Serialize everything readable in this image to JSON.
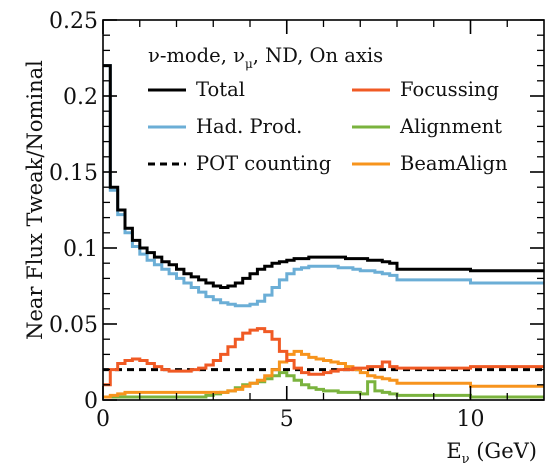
{
  "chart_data": {
    "type": "line",
    "title": "",
    "xlabel_parts": {
      "base": "E",
      "sub": "ν",
      "rest": " (GeV)"
    },
    "ylabel": "Near Flux Tweak/Nominal",
    "xlim": [
      0,
      12
    ],
    "ylim": [
      0,
      0.25
    ],
    "xticks": [
      0,
      5,
      10
    ],
    "yticks": [
      0,
      0.05,
      0.1,
      0.15,
      0.2,
      0.25
    ],
    "ytick_labels": [
      "0",
      "0.05",
      "0.1",
      "0.15",
      "0.2",
      "0.25"
    ],
    "grid": false,
    "legend_header": {
      "t1": "ν-mode, ν",
      "sub": "μ",
      "t2": ", ND, On axis"
    },
    "legend_position": "top-right",
    "bin_edges": [
      0,
      0.2,
      0.4,
      0.6,
      0.8,
      1.0,
      1.2,
      1.4,
      1.6,
      1.8,
      2.0,
      2.2,
      2.4,
      2.6,
      2.8,
      3.0,
      3.2,
      3.4,
      3.6,
      3.8,
      4.0,
      4.2,
      4.4,
      4.6,
      4.8,
      5.0,
      5.2,
      5.4,
      5.6,
      5.8,
      6.0,
      6.2,
      6.4,
      6.6,
      6.8,
      7.0,
      7.2,
      7.4,
      7.6,
      7.8,
      8.0,
      10.0,
      12.0
    ],
    "series": [
      {
        "name": "Total",
        "color": "#000000",
        "dash": "solid",
        "values": [
          0.22,
          0.14,
          0.125,
          0.113,
          0.105,
          0.1,
          0.097,
          0.094,
          0.091,
          0.089,
          0.086,
          0.083,
          0.081,
          0.079,
          0.077,
          0.075,
          0.074,
          0.075,
          0.077,
          0.08,
          0.083,
          0.086,
          0.088,
          0.09,
          0.091,
          0.092,
          0.093,
          0.093,
          0.094,
          0.094,
          0.094,
          0.094,
          0.094,
          0.093,
          0.093,
          0.093,
          0.092,
          0.092,
          0.091,
          0.09,
          0.086,
          0.085
        ]
      },
      {
        "name": "Had. Prod.",
        "color": "#6baed6",
        "dash": "solid",
        "values": [
          0.22,
          0.138,
          0.122,
          0.11,
          0.101,
          0.096,
          0.092,
          0.089,
          0.086,
          0.083,
          0.08,
          0.077,
          0.074,
          0.071,
          0.068,
          0.066,
          0.064,
          0.063,
          0.062,
          0.062,
          0.063,
          0.065,
          0.069,
          0.074,
          0.079,
          0.083,
          0.086,
          0.087,
          0.088,
          0.088,
          0.088,
          0.088,
          0.087,
          0.087,
          0.086,
          0.085,
          0.085,
          0.084,
          0.083,
          0.082,
          0.079,
          0.077
        ]
      },
      {
        "name": "POT counting",
        "color": "#000000",
        "dash": "dashed",
        "values": [
          0.02,
          0.02,
          0.02,
          0.02,
          0.02,
          0.02,
          0.02,
          0.02,
          0.02,
          0.02,
          0.02,
          0.02,
          0.02,
          0.02,
          0.02,
          0.02,
          0.02,
          0.02,
          0.02,
          0.02,
          0.02,
          0.02,
          0.02,
          0.02,
          0.02,
          0.02,
          0.02,
          0.02,
          0.02,
          0.02,
          0.02,
          0.02,
          0.02,
          0.02,
          0.02,
          0.02,
          0.02,
          0.02,
          0.02,
          0.02,
          0.02,
          0.02
        ]
      },
      {
        "name": "Focussing",
        "color": "#f05a24",
        "dash": "solid",
        "values": [
          0.01,
          0.02,
          0.024,
          0.026,
          0.027,
          0.026,
          0.024,
          0.022,
          0.02,
          0.019,
          0.019,
          0.019,
          0.02,
          0.021,
          0.023,
          0.026,
          0.03,
          0.035,
          0.04,
          0.044,
          0.046,
          0.047,
          0.045,
          0.04,
          0.032,
          0.026,
          0.021,
          0.018,
          0.017,
          0.017,
          0.018,
          0.019,
          0.02,
          0.02,
          0.021,
          0.021,
          0.022,
          0.022,
          0.025,
          0.022,
          0.021,
          0.022
        ]
      },
      {
        "name": "Alignment",
        "color": "#7ab33e",
        "dash": "solid",
        "values": [
          0.002,
          0.002,
          0.002,
          0.002,
          0.002,
          0.002,
          0.002,
          0.002,
          0.002,
          0.002,
          0.002,
          0.002,
          0.002,
          0.002,
          0.003,
          0.004,
          0.005,
          0.006,
          0.008,
          0.01,
          0.011,
          0.012,
          0.014,
          0.016,
          0.018,
          0.016,
          0.013,
          0.01,
          0.008,
          0.007,
          0.006,
          0.006,
          0.005,
          0.005,
          0.005,
          0.004,
          0.012,
          0.006,
          0.005,
          0.004,
          0.003,
          0.002
        ]
      },
      {
        "name": "BeamAlign",
        "color": "#f7941d",
        "dash": "solid",
        "values": [
          0.002,
          0.003,
          0.004,
          0.005,
          0.005,
          0.005,
          0.005,
          0.005,
          0.005,
          0.005,
          0.005,
          0.005,
          0.005,
          0.005,
          0.005,
          0.005,
          0.005,
          0.006,
          0.007,
          0.009,
          0.011,
          0.013,
          0.016,
          0.02,
          0.025,
          0.03,
          0.032,
          0.03,
          0.028,
          0.027,
          0.026,
          0.025,
          0.024,
          0.022,
          0.02,
          0.018,
          0.016,
          0.015,
          0.014,
          0.013,
          0.011,
          0.009
        ]
      }
    ]
  }
}
